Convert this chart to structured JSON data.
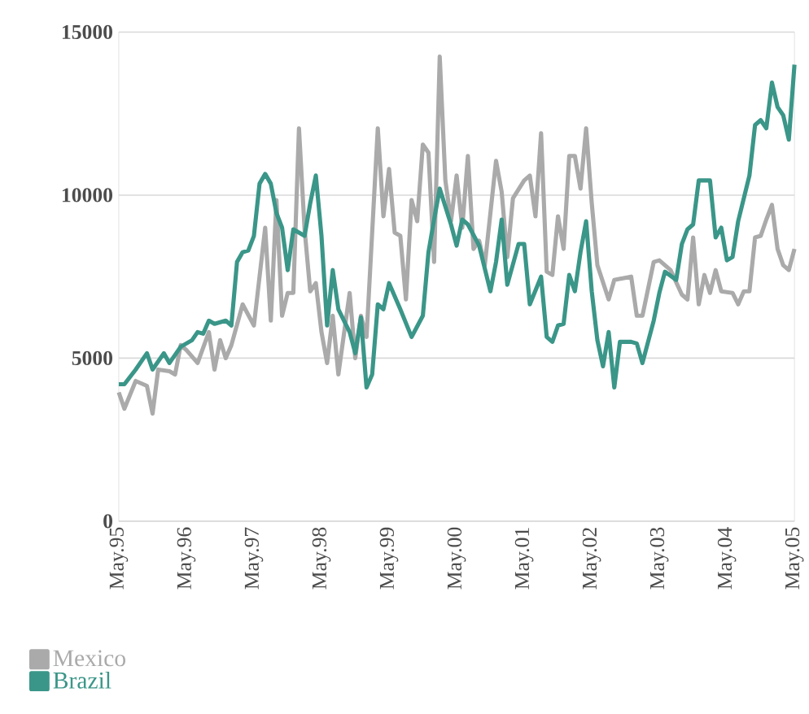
{
  "chart_data": {
    "type": "line",
    "xlim": [
      "1995-05",
      "2005-05"
    ],
    "xticks": [
      {
        "value": "1995-05",
        "label": "May.95"
      },
      {
        "value": "1996-05",
        "label": "May.96"
      },
      {
        "value": "1997-05",
        "label": "May.97"
      },
      {
        "value": "1998-05",
        "label": "May.98"
      },
      {
        "value": "1999-05",
        "label": "May.99"
      },
      {
        "value": "2000-05",
        "label": "May.00"
      },
      {
        "value": "2001-05",
        "label": "May.01"
      },
      {
        "value": "2002-05",
        "label": "May.02"
      },
      {
        "value": "2003-05",
        "label": "May.03"
      },
      {
        "value": "2004-05",
        "label": "May.04"
      },
      {
        "value": "2005-05",
        "label": "May.05"
      }
    ],
    "ylim": [
      0,
      15000
    ],
    "yticks": [
      0,
      5000,
      10000,
      15000
    ],
    "grid": "y",
    "legend": "bottom left",
    "marker": "none",
    "line_style": "solid",
    "series": [
      {
        "name": "Mexico",
        "color": "#aaaaaa",
        "x": [
          "1995-05",
          "1995-06",
          "1995-08",
          "1995-10",
          "1995-11",
          "1995-12",
          "1996-02",
          "1996-03",
          "1996-04",
          "1996-05",
          "1996-07",
          "1996-09",
          "1996-10",
          "1996-11",
          "1996-12",
          "1997-01",
          "1997-03",
          "1997-05",
          "1997-07",
          "1997-08",
          "1997-09",
          "1997-10",
          "1997-11",
          "1997-12",
          "1998-01",
          "1998-02",
          "1998-03",
          "1998-04",
          "1998-05",
          "1998-06",
          "1998-07",
          "1998-08",
          "1998-10",
          "1998-11",
          "1998-12",
          "1999-01",
          "1999-03",
          "1999-04",
          "1999-05",
          "1999-06",
          "1999-07",
          "1999-08",
          "1999-09",
          "1999-10",
          "1999-11",
          "1999-12",
          "2000-01",
          "2000-02",
          "2000-03",
          "2000-04",
          "2000-05",
          "2000-06",
          "2000-07",
          "2000-08",
          "2000-09",
          "2000-10",
          "2000-12",
          "2001-01",
          "2001-02",
          "2001-03",
          "2001-05",
          "2001-06",
          "2001-07",
          "2001-08",
          "2001-09",
          "2001-10",
          "2001-11",
          "2001-12",
          "2002-01",
          "2002-02",
          "2002-03",
          "2002-04",
          "2002-05",
          "2002-06",
          "2002-08",
          "2002-09",
          "2002-12",
          "2003-01",
          "2003-02",
          "2003-04",
          "2003-05",
          "2003-07",
          "2003-09",
          "2003-10",
          "2003-11",
          "2003-12",
          "2004-01",
          "2004-02",
          "2004-03",
          "2004-04",
          "2004-06",
          "2004-07",
          "2004-08",
          "2004-09",
          "2004-10",
          "2004-11",
          "2004-12",
          "2005-01",
          "2005-02",
          "2005-03",
          "2005-04",
          "2005-05"
        ],
        "values": [
          3950,
          3450,
          4300,
          4150,
          3300,
          4650,
          4600,
          4500,
          5400,
          5250,
          4850,
          5800,
          4650,
          5550,
          5000,
          5400,
          6650,
          6000,
          9000,
          6150,
          9850,
          6300,
          7000,
          7000,
          12050,
          8950,
          7050,
          7300,
          5800,
          4850,
          6300,
          4500,
          7000,
          5000,
          6300,
          5650,
          12050,
          9350,
          10800,
          8850,
          8750,
          6800,
          9850,
          9200,
          11550,
          11300,
          7950,
          14250,
          10450,
          9200,
          10600,
          9000,
          11200,
          8350,
          8600,
          7850,
          11050,
          10100,
          8100,
          9900,
          10450,
          10600,
          9350,
          11900,
          7650,
          7550,
          9350,
          8350,
          11200,
          11200,
          10200,
          12050,
          9750,
          7850,
          6800,
          7400,
          7500,
          6300,
          6300,
          7950,
          8000,
          7700,
          6950,
          6800,
          8700,
          6650,
          7550,
          7000,
          7700,
          7050,
          7000,
          6650,
          7050,
          7050,
          8700,
          8750,
          9250,
          9700,
          8350,
          7850,
          7700,
          8350
        ]
      },
      {
        "name": "Brazil",
        "color": "#3a9688",
        "x": [
          "1995-05",
          "1995-06",
          "1995-08",
          "1995-10",
          "1995-11",
          "1996-01",
          "1996-02",
          "1996-04",
          "1996-06",
          "1996-07",
          "1996-08",
          "1996-09",
          "1996-10",
          "1996-12",
          "1997-01",
          "1997-02",
          "1997-03",
          "1997-04",
          "1997-05",
          "1997-06",
          "1997-07",
          "1997-08",
          "1997-09",
          "1997-10",
          "1997-11",
          "1997-12",
          "1998-02",
          "1998-03",
          "1998-04",
          "1998-05",
          "1998-06",
          "1998-07",
          "1998-08",
          "1998-10",
          "1998-11",
          "1998-12",
          "1999-01",
          "1999-02",
          "1999-03",
          "1999-04",
          "1999-05",
          "1999-07",
          "1999-09",
          "1999-11",
          "1999-12",
          "2000-01",
          "2000-02",
          "2000-04",
          "2000-05",
          "2000-06",
          "2000-07",
          "2000-09",
          "2000-11",
          "2000-12",
          "2001-01",
          "2001-02",
          "2001-04",
          "2001-05",
          "2001-06",
          "2001-08",
          "2001-09",
          "2001-10",
          "2001-11",
          "2001-12",
          "2002-01",
          "2002-02",
          "2002-03",
          "2002-04",
          "2002-05",
          "2002-06",
          "2002-07",
          "2002-08",
          "2002-09",
          "2002-10",
          "2002-12",
          "2003-01",
          "2003-02",
          "2003-04",
          "2003-05",
          "2003-06",
          "2003-08",
          "2003-09",
          "2003-10",
          "2003-11",
          "2003-12",
          "2004-02",
          "2004-03",
          "2004-04",
          "2004-05",
          "2004-06",
          "2004-07",
          "2004-09",
          "2004-10",
          "2004-11",
          "2004-12",
          "2005-01",
          "2005-02",
          "2005-03",
          "2005-04",
          "2005-05"
        ],
        "values": [
          4200,
          4200,
          4650,
          5150,
          4650,
          5150,
          4850,
          5350,
          5550,
          5800,
          5750,
          6150,
          6050,
          6150,
          6000,
          7950,
          8250,
          8300,
          8750,
          10350,
          10650,
          10350,
          9450,
          9000,
          7700,
          8950,
          8750,
          9750,
          10600,
          8750,
          6000,
          7700,
          6500,
          5800,
          5150,
          6250,
          4100,
          4500,
          6650,
          6500,
          7300,
          6500,
          5650,
          6300,
          8250,
          9250,
          10200,
          9100,
          8450,
          9250,
          9100,
          8450,
          7050,
          7950,
          9250,
          7250,
          8500,
          8500,
          6650,
          7500,
          5650,
          5500,
          6000,
          6050,
          7550,
          7050,
          8250,
          9200,
          7050,
          5550,
          4750,
          5800,
          4100,
          5500,
          5500,
          5450,
          4850,
          6150,
          7000,
          7650,
          7400,
          8500,
          8950,
          9100,
          10450,
          10450,
          8700,
          9000,
          8000,
          8100,
          9200,
          10600,
          12150,
          12300,
          12050,
          13450,
          12700,
          12450,
          11700,
          14000
        ]
      }
    ]
  }
}
